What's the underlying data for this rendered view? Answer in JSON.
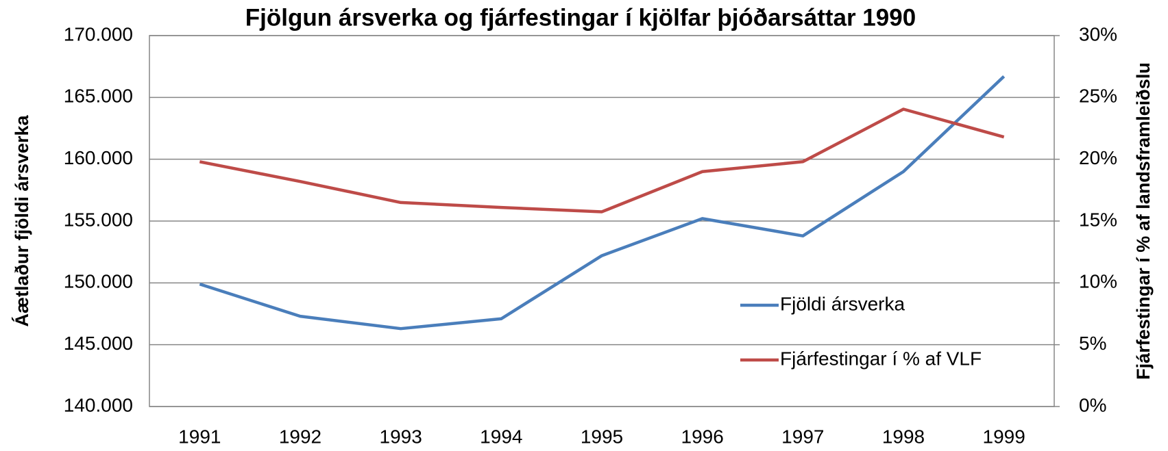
{
  "chart_data": {
    "type": "line",
    "title": "Fjölgun ársverka og fjárfestingar í kjölfar þjóðarsáttar 1990",
    "y_label": "Áætlaður fjöldi ársverka",
    "y2_label": "Fjárfestingar í % af landsframleiðslu",
    "categories": [
      "1991",
      "1992",
      "1993",
      "1994",
      "1995",
      "1996",
      "1997",
      "1998",
      "1999"
    ],
    "series": [
      {
        "name": "Fjöldi ársverka",
        "color": "#4a7ebb",
        "values": [
          149900,
          147300,
          146300,
          147100,
          152200,
          155200,
          153800,
          159000,
          166700
        ]
      },
      {
        "name": "Fjárfestingar í % af VLF",
        "color": "#be4b48",
        "axis": "y2",
        "values": [
          19.8,
          18.2,
          16.5,
          16.1,
          15.75,
          19.0,
          19.8,
          24.05,
          21.8
        ]
      }
    ],
    "ylim": [
      140000,
      170000
    ],
    "yticks": [
      {
        "value": 140000,
        "label": "140.000"
      },
      {
        "value": 145000,
        "label": "145.000"
      },
      {
        "value": 150000,
        "label": "150.000"
      },
      {
        "value": 155000,
        "label": "155.000"
      },
      {
        "value": 160000,
        "label": "160.000"
      },
      {
        "value": 165000,
        "label": "165.000"
      },
      {
        "value": 170000,
        "label": "170.000"
      }
    ],
    "y2lim": [
      0,
      30
    ],
    "y2ticks": [
      {
        "value": 0,
        "label": "0%"
      },
      {
        "value": 5,
        "label": "5%"
      },
      {
        "value": 10,
        "label": "10%"
      },
      {
        "value": 15,
        "label": "15%"
      },
      {
        "value": 20,
        "label": "20%"
      },
      {
        "value": 25,
        "label": "25%"
      },
      {
        "value": 30,
        "label": "30%"
      }
    ],
    "grid": true
  }
}
